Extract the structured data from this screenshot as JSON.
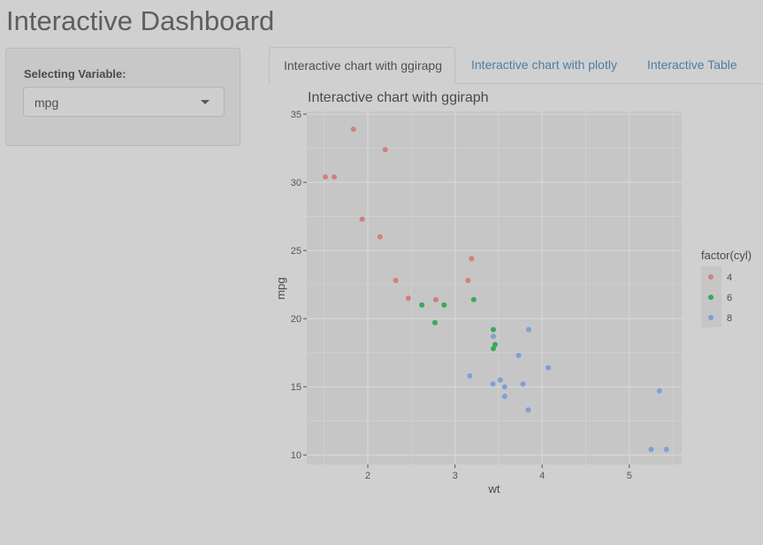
{
  "header": {
    "title": "Interactive Dashboard"
  },
  "sidebar": {
    "select_label": "Selecting Variable:",
    "select_value": "mpg",
    "caret_icon": "chevron-down-icon"
  },
  "tabs": [
    {
      "label": "Interactive chart with ggirapg",
      "active": true
    },
    {
      "label": "Interactive chart with plotly",
      "active": false
    },
    {
      "label": "Interactive Table",
      "active": false
    }
  ],
  "colors": {
    "background": "#d0d0d0",
    "panel": "#c6c6c6",
    "grid": "#d8d8d8",
    "tab_link": "#4f7da6",
    "cyl4": "#d08080",
    "cyl6": "#3aa85a",
    "cyl8": "#7f9fd6"
  },
  "chart_data": {
    "type": "scatter",
    "title": "Interactive chart with ggiraph",
    "xlabel": "wt",
    "ylabel": "mpg",
    "xlim": [
      1.3,
      5.6
    ],
    "ylim": [
      9.3,
      35.2
    ],
    "x_ticks": [
      2,
      3,
      4,
      5
    ],
    "y_ticks": [
      10,
      15,
      20,
      25,
      30,
      35
    ],
    "grid": true,
    "legend": {
      "title": "factor(cyl)",
      "position": "right"
    },
    "series": [
      {
        "name": "4",
        "x": [
          2.32,
          3.19,
          3.15,
          2.2,
          1.615,
          1.835,
          2.465,
          1.935,
          2.14,
          1.513,
          2.78
        ],
        "y": [
          22.8,
          24.4,
          22.8,
          32.4,
          30.4,
          33.9,
          21.5,
          27.3,
          26.0,
          30.4,
          21.4
        ]
      },
      {
        "name": "6",
        "x": [
          2.62,
          2.875,
          3.215,
          3.46,
          3.44,
          3.44,
          2.77
        ],
        "y": [
          21.0,
          21.0,
          21.4,
          18.1,
          19.2,
          17.8,
          19.7
        ]
      },
      {
        "name": "8",
        "x": [
          3.44,
          3.57,
          4.07,
          3.73,
          3.78,
          5.25,
          5.424,
          5.345,
          3.52,
          3.435,
          3.84,
          3.845,
          3.17,
          3.57
        ],
        "y": [
          18.7,
          14.3,
          16.4,
          17.3,
          15.2,
          10.4,
          10.4,
          14.7,
          15.5,
          15.2,
          13.3,
          19.2,
          15.8,
          15.0
        ]
      }
    ]
  }
}
